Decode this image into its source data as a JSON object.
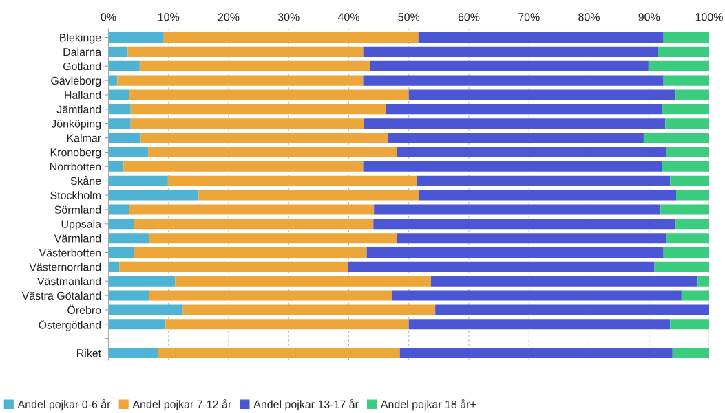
{
  "chart_data": {
    "type": "bar",
    "orientation": "horizontal",
    "stacked": true,
    "categories": [
      "Blekinge",
      "Dalarna",
      "Gotland",
      "Gävleborg",
      "Halland",
      "Jämtland",
      "Jönköping",
      "Kalmar",
      "Kronoberg",
      "Norrbotten",
      "Skåne",
      "Stockholm",
      "Sörmland",
      "Uppsala",
      "Värmland",
      "Västerbotten",
      "Västernorrland",
      "Västmanland",
      "Västra Götaland",
      "Örebro",
      "Östergötland",
      null,
      "Riket"
    ],
    "series": [
      {
        "name": "Andel pojkar 0-6 år",
        "color": "#4fb3d4",
        "values": [
          9.2,
          3.2,
          5.2,
          1.5,
          3.5,
          3.7,
          3.7,
          5.4,
          6.6,
          2.5,
          9.9,
          15.0,
          3.4,
          4.3,
          6.8,
          4.3,
          1.8,
          11.1,
          6.8,
          12.4,
          9.5,
          null,
          8.2
        ]
      },
      {
        "name": "Andel pojkar 7-12 år",
        "color": "#eda63a",
        "values": [
          42.4,
          39.2,
          38.3,
          40.9,
          46.5,
          42.5,
          38.8,
          41.1,
          41.4,
          39.9,
          41.4,
          36.7,
          40.8,
          39.8,
          41.2,
          38.7,
          38.1,
          42.6,
          40.4,
          42.0,
          40.5,
          null,
          40.3
        ]
      },
      {
        "name": "Andel pojkar 13-17 år",
        "color": "#4a56d4",
        "values": [
          40.8,
          49.1,
          46.4,
          50.0,
          44.4,
          46.0,
          50.2,
          42.6,
          44.8,
          49.8,
          42.2,
          42.8,
          47.7,
          50.3,
          44.9,
          49.4,
          51.0,
          44.4,
          48.2,
          45.6,
          43.5,
          null,
          45.4
        ]
      },
      {
        "name": "Andel pojkar 18 år+",
        "color": "#3ccc7f",
        "values": [
          7.6,
          8.5,
          10.1,
          7.6,
          5.6,
          7.8,
          7.3,
          10.9,
          7.2,
          7.8,
          6.5,
          5.5,
          8.1,
          5.6,
          7.1,
          7.6,
          9.1,
          1.9,
          4.6,
          0,
          6.5,
          null,
          6.1
        ]
      }
    ],
    "xlim": [
      0,
      100
    ],
    "xticks": [
      {
        "value": 0,
        "label": "0%"
      },
      {
        "value": 10,
        "label": "10%"
      },
      {
        "value": 20,
        "label": "20%"
      },
      {
        "value": 30,
        "label": "30%"
      },
      {
        "value": 40,
        "label": "40%"
      },
      {
        "value": 50,
        "label": "50%"
      },
      {
        "value": 60,
        "label": "60%"
      },
      {
        "value": 70,
        "label": "70%"
      },
      {
        "value": 80,
        "label": "80%"
      },
      {
        "value": 90,
        "label": "90%"
      },
      {
        "value": 100,
        "label": "100%"
      }
    ],
    "grid": "x",
    "legend": "bottom"
  }
}
